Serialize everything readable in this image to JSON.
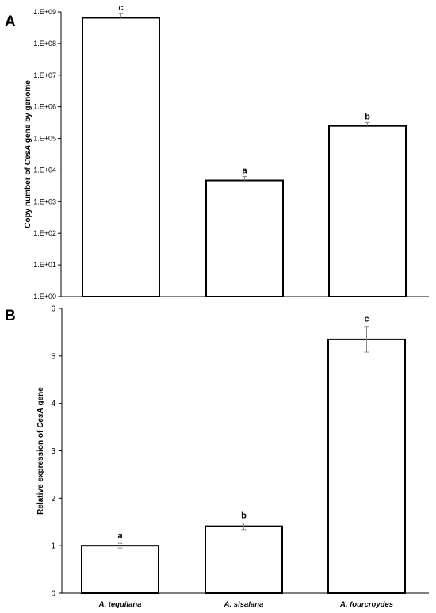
{
  "chart_data": [
    {
      "panel": "A",
      "type": "bar",
      "scale": "log10",
      "ylabel": "Copy number  of CesA gene by genome",
      "ylim": [
        1,
        1000000000
      ],
      "yticks": [
        "1.E+00",
        "1.E+01",
        "1.E+02",
        "1.E+03",
        "1.E+04",
        "1.E+05",
        "1.E+06",
        "1.E+07",
        "1.E+08",
        "1.E+09"
      ],
      "categories": [
        "A. tequilana",
        "A. sisalana",
        "A. fourcroydes"
      ],
      "values": [
        650000000,
        4700,
        250000
      ],
      "error_upper": [
        880000000,
        6300,
        320000
      ],
      "significance": [
        "c",
        "a",
        "b"
      ],
      "grid": false
    },
    {
      "panel": "B",
      "type": "bar",
      "ylabel": "Relative expression of CesA gene",
      "ylim": [
        0,
        6
      ],
      "yticks": [
        "0",
        "1",
        "2",
        "3",
        "4",
        "5",
        "6"
      ],
      "categories": [
        "A. tequilana",
        "A. sisalana",
        "A. fourcroydes"
      ],
      "values": [
        1.0,
        1.41,
        5.35
      ],
      "errors": [
        0.05,
        0.07,
        0.27
      ],
      "significance": [
        "a",
        "b",
        "c"
      ],
      "grid": false
    }
  ]
}
